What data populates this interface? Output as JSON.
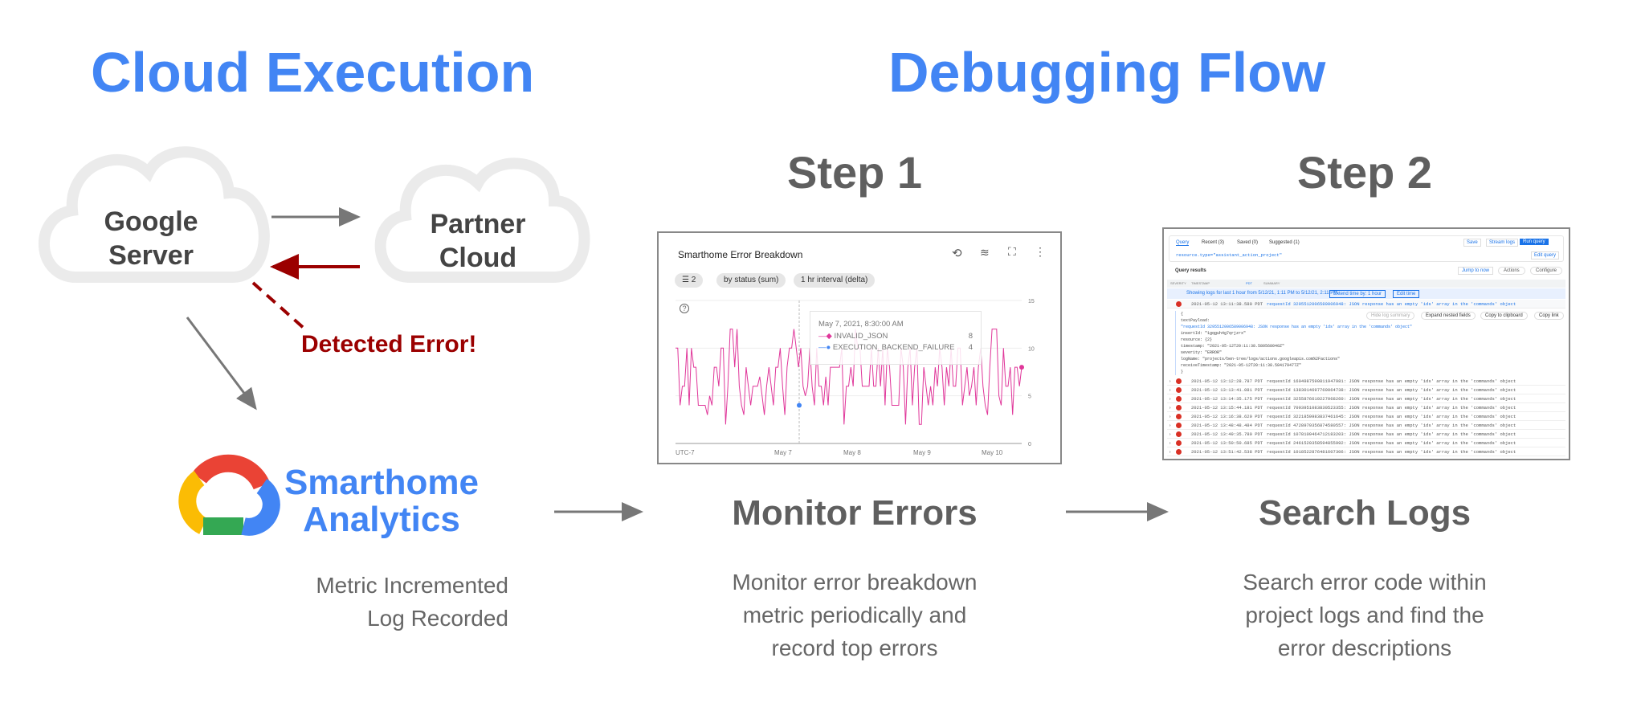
{
  "titles": {
    "left": "Cloud Execution",
    "right": "Debugging Flow"
  },
  "clouds": {
    "google": [
      "Google",
      "Server"
    ],
    "partner": [
      "Partner",
      "Cloud"
    ]
  },
  "error_label": "Detected Error!",
  "analytics": {
    "name": [
      "Smarthome",
      "Analytics"
    ],
    "desc": [
      "Metric Incremented",
      "Log Recorded"
    ]
  },
  "steps": [
    {
      "title": "Step 1",
      "label": "Monitor Errors",
      "desc": [
        "Monitor error breakdown",
        "metric periodically and",
        "record top errors"
      ]
    },
    {
      "title": "Step 2",
      "label": "Search Logs",
      "desc": [
        "Search error code within",
        "project logs and find the",
        "error descriptions"
      ]
    }
  ],
  "colors": {
    "blue": "#4285f4",
    "error_red": "#9b0000",
    "arrow_gray": "#777777",
    "series_pink": "#e0379a",
    "series_blue": "#4285f4"
  },
  "chart": {
    "title": "Smarthome Error Breakdown",
    "chips": [
      "2",
      "by status (sum)",
      "1 hr interval (delta)"
    ],
    "icons": [
      "zoom-reset-icon",
      "legend-icon",
      "fullscreen-icon",
      "more-vert-icon"
    ],
    "y_ticks": [
      "15",
      "10",
      "5",
      "0"
    ],
    "x_ticks": [
      "UTC-7",
      "May 7",
      "May 8",
      "May 9",
      "May 10"
    ],
    "tooltip": {
      "time": "May 7, 2021, 8:30:00 AM",
      "rows": [
        {
          "name": "INVALID_JSON",
          "value": "8"
        },
        {
          "name": "EXECUTION_BACKEND_FAILURE",
          "value": "4"
        }
      ]
    }
  },
  "chart_data": {
    "type": "line",
    "title": "Smarthome Error Breakdown",
    "ylim": [
      0,
      15
    ],
    "series": [
      {
        "name": "INVALID_JSON",
        "values": [
          10,
          10,
          4,
          6,
          6,
          10,
          4,
          10,
          8,
          8,
          4,
          4,
          4,
          4,
          3,
          5,
          4,
          8,
          8,
          6,
          10,
          10,
          2,
          6,
          12,
          12,
          8,
          12,
          6,
          4,
          3,
          8,
          6,
          4,
          6,
          6,
          6,
          7,
          5,
          3,
          6,
          8,
          6,
          4,
          8,
          8,
          10,
          6,
          3,
          8,
          10,
          10,
          12,
          10,
          8,
          10,
          6,
          5,
          6,
          10,
          6,
          4,
          10,
          6,
          6,
          4,
          7,
          4,
          8,
          8,
          8,
          8,
          8,
          10,
          2,
          6,
          6,
          8,
          6,
          12,
          10,
          10,
          6,
          6,
          6,
          6,
          10,
          6,
          6,
          10,
          6,
          10,
          4,
          10,
          8,
          4,
          4,
          4,
          4,
          10,
          8,
          2,
          8,
          10,
          4,
          8,
          10,
          2,
          2,
          8,
          6,
          4,
          6,
          4,
          8,
          6,
          10,
          8,
          4,
          8,
          6,
          10,
          6,
          6,
          10,
          10,
          4,
          6,
          8,
          5,
          6,
          8,
          4,
          8,
          10,
          6,
          4,
          3,
          8,
          12,
          12,
          12,
          5,
          4,
          10,
          6,
          6,
          8,
          3,
          8,
          8,
          6,
          8
        ]
      },
      {
        "name": "EXECUTION_BACKEND_FAILURE",
        "values": [
          4
        ]
      }
    ]
  },
  "logs": {
    "tabs": [
      "Query",
      "Recent (3)",
      "Saved (0)",
      "Suggested (1)"
    ],
    "buttons": [
      "Save",
      "Stream logs",
      "Run query",
      "Edit query",
      "Jump to now",
      "Actions",
      "Configure",
      "Extend time by: 1 hour",
      "Edit time",
      "Hide log summary",
      "Expand nested fields",
      "Copy to clipboard",
      "Copy link"
    ],
    "query": "resource.type=\"assistant_action_project\"",
    "results_label": "Query results",
    "columns": [
      "SEVERITY",
      "TIMESTAMP",
      "PDT",
      "SUMMARY"
    ],
    "notice": "Showing logs for last 1 hour from 5/12/21, 1:11 PM to 5/12/21, 2:11 PM.",
    "expanded": {
      "ts": "2021-05-12 13:11:38.580 PDT",
      "summary": "requestId 3295512006589006948: JSON response has an empty 'ids' array in the 'commands' object",
      "lines": [
        "{",
        "textPayload:",
        "\"requestId 3295512006589006948: JSON response has an empty 'ids' array in the 'commands' object\"",
        "insertId: \"1gqguh4g7qrjzrx\"",
        "resource: {2}",
        "timestamp: \"2021-05-12T20:11:38.580568040Z\"",
        "severity: \"ERROR\"",
        "logName: \"projects/ben-tree/logs/actions.googleapis.com%2Factions\"",
        "receiveTimestamp: \"2021-05-12T20:11:38.584179477Z\"",
        "}"
      ]
    },
    "rows": [
      {
        "ts": "2021-05-12 13:12:28.787 PDT",
        "summary": "requestId 1604987590811947981: JSON response has an empty 'ids' array in the 'commands' object"
      },
      {
        "ts": "2021-05-12 13:13:41.081 PDT",
        "summary": "requestId 1383014697769064738: JSON response has an empty 'ids' array in the 'commands' object"
      },
      {
        "ts": "2021-05-12 13:14:35.175 PDT",
        "summary": "requestId 3255876619227068260: JSON response has an empty 'ids' array in the 'commands' object"
      },
      {
        "ts": "2021-05-12 13:15:44.181 PDT",
        "summary": "requestId 7093951083830523355: JSON response has an empty 'ids' array in the 'commands' object"
      },
      {
        "ts": "2021-05-12 13:16:38.620 PDT",
        "summary": "requestId 3221859983837461645: JSON response has an empty 'ids' array in the 'commands' object"
      },
      {
        "ts": "2021-05-12 13:48:48.484 PDT",
        "summary": "requestId 4728979356874580557: JSON response has an empty 'ids' array in the 'commands' object"
      },
      {
        "ts": "2021-05-12 13:49:35.780 PDT",
        "summary": "requestId 1078109464712183203: JSON response has an empty 'ids' array in the 'commands' object"
      },
      {
        "ts": "2021-05-12 13:50:50.685 PDT",
        "summary": "requestId 2461520358594855992: JSON response has an empty 'ids' array in the 'commands' object"
      },
      {
        "ts": "2021-05-12 13:51:42.538 PDT",
        "summary": "requestId 1018522876481607306: JSON response has an empty 'ids' array in the 'commands' object"
      }
    ]
  }
}
